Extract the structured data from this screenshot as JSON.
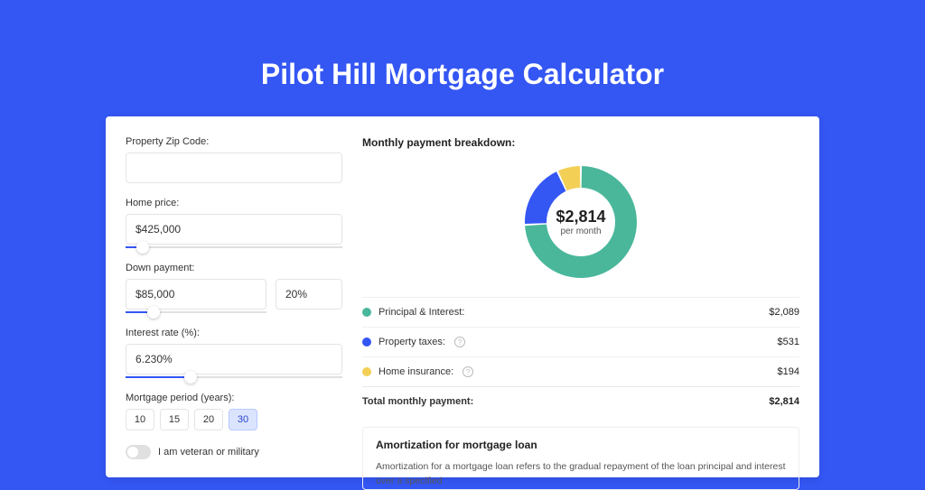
{
  "title": "Pilot Hill Mortgage Calculator",
  "colors": {
    "page_bg": "#3456f3",
    "card_bg": "#ffffff",
    "border": "#e4e4e4",
    "slider_fill": "#3456f3",
    "text": "#333333"
  },
  "inputs": {
    "zip": {
      "label": "Property Zip Code:",
      "value": ""
    },
    "home_price": {
      "label": "Home price:",
      "value": "$425,000",
      "slider_pct": 8
    },
    "down_payment": {
      "label": "Down payment:",
      "value": "$85,000",
      "pct_value": "20%",
      "slider_pct": 20
    },
    "interest": {
      "label": "Interest rate (%):",
      "value": "6.230%",
      "slider_pct": 30
    },
    "period": {
      "label": "Mortgage period (years):",
      "options": [
        "10",
        "15",
        "20",
        "30"
      ],
      "selected": "30"
    },
    "veteran": {
      "label": "I am veteran or military",
      "checked": false
    }
  },
  "breakdown": {
    "title": "Monthly payment breakdown:",
    "total": "$2,814",
    "per_label": "per month",
    "donut": {
      "type": "donut",
      "inner_radius": 38,
      "outer_radius": 62,
      "paddingAngle": 2,
      "segments": [
        {
          "label": "Principal & Interest:",
          "value": 2089,
          "pct": 74.2,
          "color": "#4ab79b"
        },
        {
          "label": "Property taxes:",
          "value": 531,
          "pct": 18.9,
          "color": "#3456f3"
        },
        {
          "label": "Home insurance:",
          "value": 194,
          "pct": 6.9,
          "color": "#f3cf56"
        }
      ]
    },
    "rows": [
      {
        "label": "Principal & Interest:",
        "value": "$2,089",
        "color": "#4ab79b",
        "info": false
      },
      {
        "label": "Property taxes:",
        "value": "$531",
        "color": "#3456f3",
        "info": true
      },
      {
        "label": "Home insurance:",
        "value": "$194",
        "color": "#f3cf56",
        "info": true
      }
    ],
    "total_row": {
      "label": "Total monthly payment:",
      "value": "$2,814"
    }
  },
  "amortization": {
    "title": "Amortization for mortgage loan",
    "text": "Amortization for a mortgage loan refers to the gradual repayment of the loan principal and interest over a specified"
  }
}
